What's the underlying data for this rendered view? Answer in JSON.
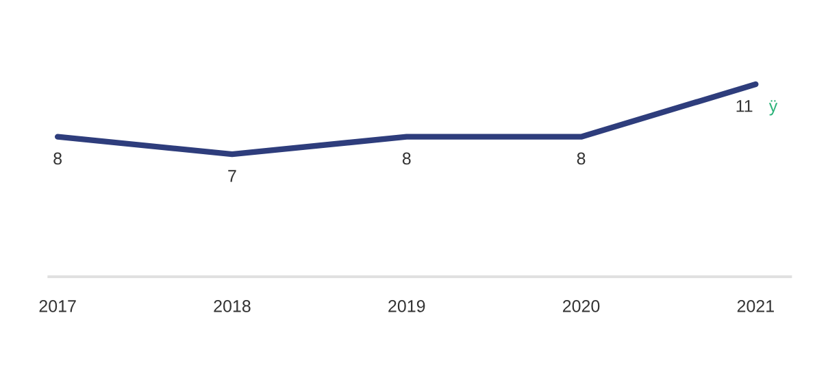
{
  "chart_data": {
    "type": "line",
    "categories": [
      "2017",
      "2018",
      "2019",
      "2020",
      "2021"
    ],
    "series": [
      {
        "color": "#2e3d7c",
        "values": [
          8,
          7,
          8,
          8,
          11
        ]
      }
    ],
    "tick_labels": "x",
    "grid": false,
    "legend": false,
    "marker": "none",
    "line_style": "solid",
    "data_labels": true,
    "annotations": [
      {
        "text": "ÿ",
        "x": "2021",
        "y": 11
      }
    ]
  }
}
